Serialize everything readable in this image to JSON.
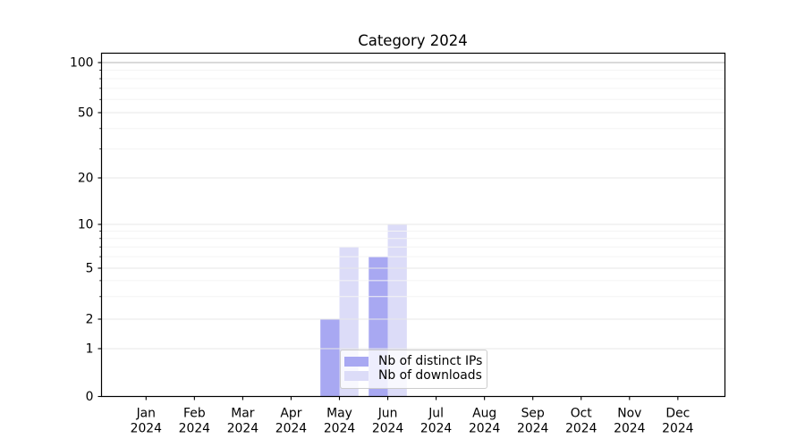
{
  "figure": {
    "title": "Category 2024"
  },
  "chart_data": {
    "type": "bar",
    "title": "Category 2024",
    "categories": [
      "Jan",
      "Feb",
      "Mar",
      "Apr",
      "May",
      "Jun",
      "Jul",
      "Aug",
      "Sep",
      "Oct",
      "Nov",
      "Dec"
    ],
    "x_tick_line2": "2024",
    "series": [
      {
        "name": "Nb of distinct IPs",
        "color": "#a8a8f2",
        "values": [
          0,
          0,
          0,
          0,
          2,
          6,
          0,
          0,
          0,
          0,
          0,
          0
        ]
      },
      {
        "name": "Nb of downloads",
        "color": "#dcdcf8",
        "values": [
          0,
          0,
          0,
          0,
          7,
          10,
          0,
          0,
          0,
          0,
          0,
          0
        ]
      }
    ],
    "yscale": "symlog",
    "ylim": [
      0,
      100
    ],
    "ytick_values": [
      0,
      1,
      2,
      5,
      10,
      20,
      50,
      100
    ],
    "ytick_labels": [
      "0",
      "1",
      "2",
      "5",
      "10",
      "20",
      "50",
      "100"
    ],
    "minor_gridline_values": [
      3,
      4,
      6,
      7,
      8,
      9,
      30,
      40,
      60,
      70,
      80,
      90
    ],
    "grid": true,
    "legend": {
      "position": "lower-center-inside",
      "entries": [
        "Nb of distinct IPs",
        "Nb of downloads"
      ]
    },
    "colors": {
      "bar_distinct_ips": "#a8a8f2",
      "bar_downloads": "#dcdcf8",
      "grid_major": "#e7e7e7",
      "grid_minor": "#f4f4f4",
      "grid_top": "#b4b4b4",
      "axis": "#000000",
      "text": "#000000",
      "legend_border": "#cccccc",
      "legend_background": "#ffffff"
    }
  }
}
